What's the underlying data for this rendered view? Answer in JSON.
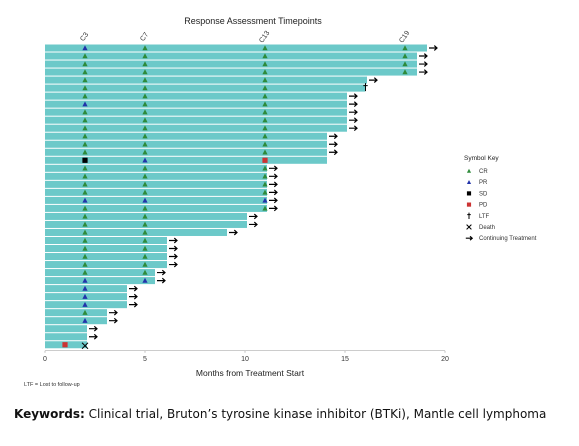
{
  "chart_data": {
    "type": "swimmer",
    "title": "Response Assessment Timepoints",
    "xlabel": "Months from Treatment Start",
    "xlim": [
      0,
      20
    ],
    "xticks": [
      "0",
      "5",
      "10",
      "15",
      "20"
    ],
    "cycle_markers": [
      {
        "label": "C3",
        "x": 2
      },
      {
        "label": "C7",
        "x": 5
      },
      {
        "label": "C13",
        "x": 11
      },
      {
        "label": "C19",
        "x": 18
      }
    ],
    "legend": {
      "title": "Symbol Key",
      "items": [
        {
          "symbol": "triangle",
          "color": "#2e8b3a",
          "label": "CR"
        },
        {
          "symbol": "triangle",
          "color": "#2233aa",
          "label": "PR"
        },
        {
          "symbol": "square",
          "color": "#000000",
          "label": "SD"
        },
        {
          "symbol": "square",
          "color": "#cc3333",
          "label": "PD"
        },
        {
          "symbol": "dagger",
          "color": "#000000",
          "label": "LTF"
        },
        {
          "symbol": "cross",
          "color": "#000000",
          "label": "Death"
        },
        {
          "symbol": "arrow",
          "color": "#000000",
          "label": "Continuing Treatment"
        }
      ]
    },
    "footnote": "LTF = Lost to follow-up",
    "bar_color": "#6cc9c9",
    "patients": [
      {
        "length": 19.1,
        "r2": "PR",
        "r5": "CR",
        "r11": "CR",
        "r18": "CR",
        "cont": true
      },
      {
        "length": 18.6,
        "r2": "CR",
        "r5": "CR",
        "r11": "CR",
        "r18": "CR",
        "cont": true
      },
      {
        "length": 18.6,
        "r2": "CR",
        "r5": "CR",
        "r11": "CR",
        "r18": "CR",
        "cont": true
      },
      {
        "length": 18.6,
        "r2": "CR",
        "r5": "CR",
        "r11": "CR",
        "r18": "CR",
        "cont": true
      },
      {
        "length": 16.1,
        "r2": "CR",
        "r5": "CR",
        "r11": "CR",
        "cont": true
      },
      {
        "length": 16.0,
        "r2": "CR",
        "r5": "CR",
        "r11": "CR",
        "ltf": true
      },
      {
        "length": 15.1,
        "r2": "CR",
        "r5": "CR",
        "r11": "CR",
        "cont": true
      },
      {
        "length": 15.1,
        "r2": "PR",
        "r5": "CR",
        "r11": "CR",
        "cont": true
      },
      {
        "length": 15.1,
        "r2": "CR",
        "r5": "CR",
        "r11": "CR",
        "cont": true
      },
      {
        "length": 15.1,
        "r2": "CR",
        "r5": "CR",
        "r11": "CR",
        "cont": true
      },
      {
        "length": 15.1,
        "r2": "CR",
        "r5": "CR",
        "r11": "CR",
        "cont": true
      },
      {
        "length": 14.1,
        "r2": "CR",
        "r5": "CR",
        "r11": "CR",
        "cont": true
      },
      {
        "length": 14.1,
        "r2": "CR",
        "r5": "CR",
        "r11": "CR",
        "cont": true
      },
      {
        "length": 14.1,
        "r2": "CR",
        "r5": "CR",
        "r11": "CR",
        "cont": true
      },
      {
        "length": 14.1,
        "r2": "SD",
        "r5": "PR",
        "r11": "PD"
      },
      {
        "length": 11.1,
        "r2": "CR",
        "r5": "CR",
        "r11": "CR",
        "cont": true
      },
      {
        "length": 11.1,
        "r2": "CR",
        "r5": "CR",
        "r11": "CR",
        "cont": true
      },
      {
        "length": 11.1,
        "r2": "CR",
        "r5": "CR",
        "r11": "CR",
        "cont": true
      },
      {
        "length": 11.1,
        "r2": "CR",
        "r5": "CR",
        "r11": "CR",
        "cont": true
      },
      {
        "length": 11.1,
        "r2": "PR",
        "r5": "PR",
        "r11": "PR",
        "cont": true
      },
      {
        "length": 11.1,
        "r2": "CR",
        "r5": "CR",
        "r11": "CR",
        "cont": true
      },
      {
        "length": 10.1,
        "r2": "CR",
        "r5": "CR",
        "cont": true
      },
      {
        "length": 10.1,
        "r2": "CR",
        "r5": "CR",
        "cont": true
      },
      {
        "length": 9.1,
        "r2": "CR",
        "r5": "CR",
        "cont": true
      },
      {
        "length": 6.1,
        "r2": "CR",
        "r5": "CR",
        "cont": true
      },
      {
        "length": 6.1,
        "r2": "CR",
        "r5": "CR",
        "cont": true
      },
      {
        "length": 6.1,
        "r2": "CR",
        "r5": "CR",
        "cont": true
      },
      {
        "length": 6.1,
        "r2": "CR",
        "r5": "CR",
        "cont": true
      },
      {
        "length": 5.5,
        "r2": "CR",
        "r5": "CR",
        "cont": true
      },
      {
        "length": 5.5,
        "r2": "PR",
        "r5": "PR",
        "cont": true
      },
      {
        "length": 4.1,
        "r2": "PR",
        "cont": true
      },
      {
        "length": 4.1,
        "r2": "PR",
        "cont": true
      },
      {
        "length": 4.1,
        "r2": "PR",
        "cont": true
      },
      {
        "length": 3.1,
        "r2": "CR",
        "cont": true
      },
      {
        "length": 3.1,
        "r2": "PR",
        "cont": true
      },
      {
        "length": 2.1,
        "cont": true
      },
      {
        "length": 2.1,
        "cont": true
      },
      {
        "length": 2.1,
        "r1": "PD",
        "death": 1.5
      }
    ]
  },
  "caption": {
    "keywords_label": "Keywords:",
    "keywords_text": " Clinical trial, Bruton’s tyrosine kinase inhibitor (BTKi), Mantle cell lymphoma"
  }
}
